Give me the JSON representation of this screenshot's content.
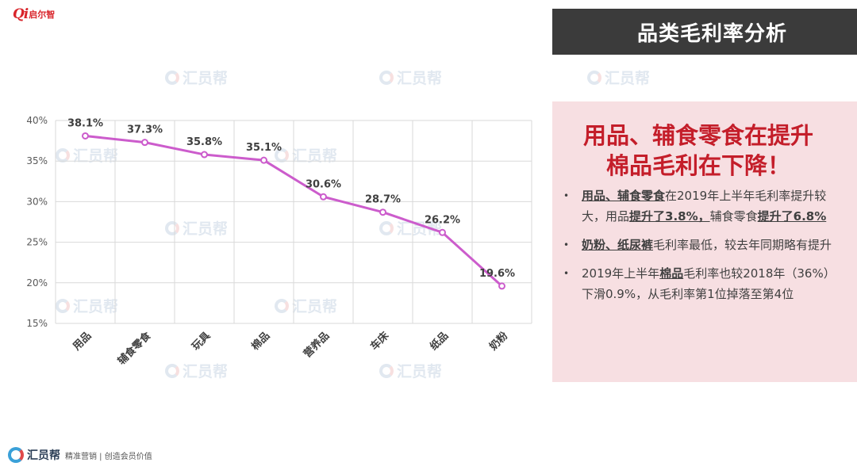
{
  "logo": {
    "mark": "Qi",
    "text": "启尔智"
  },
  "title": "品类毛利率分析",
  "watermark": "汇员帮",
  "chart_data": {
    "type": "line",
    "categories": [
      "用品",
      "辅食零食",
      "玩具",
      "棉品",
      "营养品",
      "车床",
      "纸品",
      "奶粉"
    ],
    "values": [
      38.1,
      37.3,
      35.8,
      35.1,
      30.6,
      28.7,
      26.2,
      19.6
    ],
    "value_labels": [
      "38.1%",
      "37.3%",
      "35.8%",
      "35.1%",
      "30.6%",
      "28.7%",
      "26.2%",
      "19.6%"
    ],
    "y_ticks": [
      "40%",
      "35%",
      "30%",
      "25%",
      "20%",
      "15%"
    ],
    "ylim": [
      15,
      40
    ],
    "grid": true,
    "color": "#cc5ccc"
  },
  "panel": {
    "headline_line1": "用品、辅食零食在提升",
    "headline_line2": "棉品毛利在下降！",
    "bullets": [
      {
        "segments": [
          {
            "text": "用品、辅食零食",
            "style": "u"
          },
          {
            "text": "在2019年上半年毛利率提升较大，用品",
            "style": ""
          },
          {
            "text": "提升了3.8%，",
            "style": "u"
          },
          {
            "text": "辅食零食",
            "style": ""
          },
          {
            "text": "提升了6.8%",
            "style": "u"
          }
        ]
      },
      {
        "segments": [
          {
            "text": "奶粉、纸尿裤",
            "style": "u"
          },
          {
            "text": "毛利率最低，较去年同期略有提升",
            "style": ""
          }
        ]
      },
      {
        "segments": [
          {
            "text": "2019年上半年",
            "style": ""
          },
          {
            "text": "棉品",
            "style": "u"
          },
          {
            "text": "毛利率也较2018年（36%）下滑0.9%，从毛利率第1位掉落至第4位",
            "style": ""
          }
        ]
      }
    ]
  },
  "footer": {
    "brand": "汇员帮",
    "text": "精准营销 | 创造会员价值"
  }
}
